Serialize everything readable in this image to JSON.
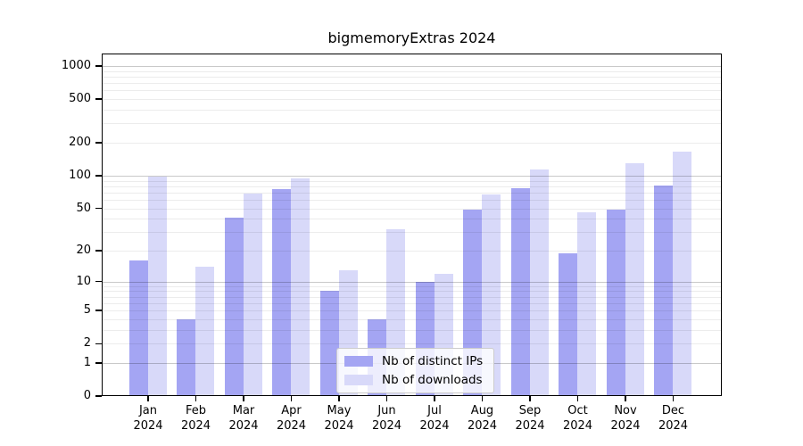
{
  "chart_data": {
    "type": "bar",
    "title": "bigmemoryExtras 2024",
    "x_categories": [
      {
        "month": "Jan",
        "year": "2024"
      },
      {
        "month": "Feb",
        "year": "2024"
      },
      {
        "month": "Mar",
        "year": "2024"
      },
      {
        "month": "Apr",
        "year": "2024"
      },
      {
        "month": "May",
        "year": "2024"
      },
      {
        "month": "Jun",
        "year": "2024"
      },
      {
        "month": "Jul",
        "year": "2024"
      },
      {
        "month": "Aug",
        "year": "2024"
      },
      {
        "month": "Sep",
        "year": "2024"
      },
      {
        "month": "Oct",
        "year": "2024"
      },
      {
        "month": "Nov",
        "year": "2024"
      },
      {
        "month": "Dec",
        "year": "2024"
      }
    ],
    "series": [
      {
        "name": "Nb of distinct IPs",
        "key": "ips",
        "color": "#a4a5f3",
        "values": [
          16,
          4,
          41,
          75,
          8,
          4,
          10,
          49,
          77,
          19,
          49,
          81
        ]
      },
      {
        "name": "Nb of downloads",
        "key": "downloads",
        "color": "#d8d9f9",
        "values": [
          97,
          14,
          68,
          95,
          13,
          32,
          12,
          67,
          113,
          46,
          130,
          167
        ]
      }
    ],
    "y_axis": {
      "scale": "log1p",
      "range": [
        0,
        1320
      ],
      "ticks": [
        {
          "v": 0,
          "label": "0"
        },
        {
          "v": 1,
          "label": "1"
        },
        {
          "v": 2,
          "label": "2"
        },
        {
          "v": 5,
          "label": "5"
        },
        {
          "v": 10,
          "label": "10"
        },
        {
          "v": 20,
          "label": "20"
        },
        {
          "v": 50,
          "label": "50"
        },
        {
          "v": 100,
          "label": "100"
        },
        {
          "v": 200,
          "label": "200"
        },
        {
          "v": 500,
          "label": "500"
        },
        {
          "v": 1000,
          "label": "1000"
        }
      ],
      "major_grid": [
        1,
        10,
        100,
        1000
      ],
      "minor_grid": [
        2,
        3,
        4,
        5,
        6,
        7,
        8,
        9,
        20,
        30,
        40,
        50,
        60,
        70,
        80,
        90,
        200,
        300,
        400,
        500,
        600,
        700,
        800,
        900
      ]
    },
    "grid": true,
    "legend": {
      "position": "lower center",
      "items": [
        {
          "label": "Nb of distinct IPs",
          "color": "#a4a5f3"
        },
        {
          "label": "Nb of downloads",
          "color": "#d8d9f9"
        }
      ]
    }
  }
}
